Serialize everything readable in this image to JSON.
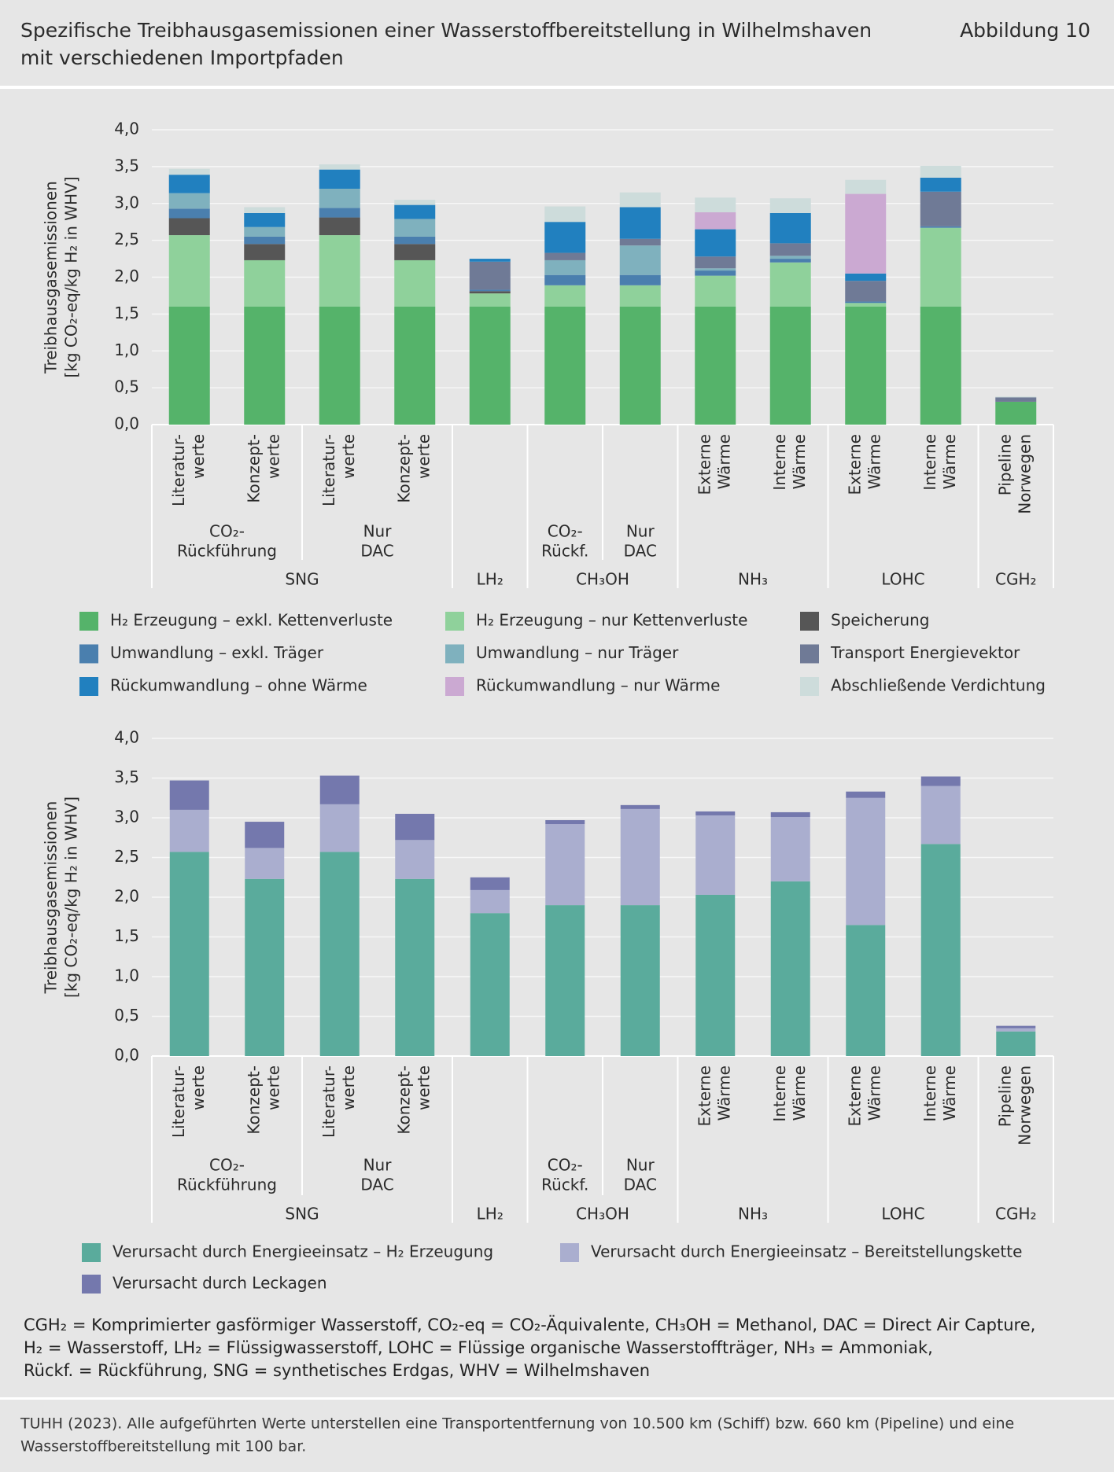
{
  "header": {
    "title": [
      "Spezifische Treibhausgasemissionen einer Wasserstoffbereitstellung in Wilhelmshaven",
      "mit verschiedenen Importpfaden"
    ],
    "figure": "Abbildung 10"
  },
  "chart_data": [
    {
      "type": "stacked_bar",
      "y_label": [
        "Treibhausgasemissionen",
        "[kg CO₂-eq/kg H₂ in WHV]"
      ],
      "ylim": [
        0,
        4
      ],
      "yticks": [
        {
          "value": 0,
          "label": "0,0"
        },
        {
          "value": 0.5,
          "label": "0,5"
        },
        {
          "value": 1,
          "label": "1,0"
        },
        {
          "value": 1.5,
          "label": "1,5"
        },
        {
          "value": 2,
          "label": "2,0"
        },
        {
          "value": 2.5,
          "label": "2,5"
        },
        {
          "value": 3,
          "label": "3,0"
        },
        {
          "value": 3.5,
          "label": "3,5"
        },
        {
          "value": 4,
          "label": "4,0"
        }
      ],
      "grid": true,
      "groups": [
        {
          "name": "SNG",
          "subgroups": [
            {
              "label": [
                "CO₂-",
                "Rückführung"
              ],
              "bars": [
                [
                  "Literatur-",
                  "werte"
                ],
                [
                  "Konzept-",
                  "werte"
                ]
              ]
            },
            {
              "label": [
                "Nur",
                "DAC"
              ],
              "bars": [
                [
                  "Literatur-",
                  "werte"
                ],
                [
                  "Konzept-",
                  "werte"
                ]
              ]
            }
          ]
        },
        {
          "name": "LH₂",
          "subgroups": [
            {
              "bars": [
                null
              ]
            }
          ]
        },
        {
          "name": "CH₃OH",
          "subgroups": [
            {
              "label": [
                "CO₂-",
                "Rückf."
              ],
              "bars": [
                null
              ]
            },
            {
              "label": [
                "Nur",
                "DAC"
              ],
              "bars": [
                null
              ]
            }
          ]
        },
        {
          "name": "NH₃",
          "subgroups": [
            {
              "bars": [
                [
                  "Externe",
                  "Wärme"
                ],
                [
                  "Interne",
                  "Wärme"
                ]
              ]
            }
          ]
        },
        {
          "name": "LOHC",
          "subgroups": [
            {
              "bars": [
                [
                  "Externe",
                  "Wärme"
                ],
                [
                  "Interne",
                  "Wärme"
                ]
              ]
            }
          ]
        },
        {
          "name": "CGH₂",
          "subgroups": [
            {
              "bars": [
                [
                  "Pipeline",
                  "Norwegen"
                ]
              ]
            }
          ]
        }
      ],
      "series": [
        {
          "name": "H₂ Erzeugung – exkl. Kettenverluste",
          "color": "#55b36a",
          "values": [
            1.6,
            1.6,
            1.6,
            1.6,
            1.6,
            1.6,
            1.6,
            1.6,
            1.6,
            1.6,
            1.6,
            0.31
          ]
        },
        {
          "name": "H₂ Erzeugung – nur Kettenverluste",
          "color": "#8fd19b",
          "values": [
            0.97,
            0.63,
            0.97,
            0.63,
            0.18,
            0.29,
            0.29,
            0.42,
            0.6,
            0.05,
            1.07,
            0
          ]
        },
        {
          "name": "Speicherung",
          "color": "#565656",
          "values": [
            0.23,
            0.22,
            0.24,
            0.22,
            0.03,
            0,
            0,
            0,
            0,
            0,
            0,
            0
          ]
        },
        {
          "name": "Umwandlung – exkl. Träger",
          "color": "#4a7fae",
          "values": [
            0.13,
            0.1,
            0.13,
            0.1,
            0.02,
            0.14,
            0.14,
            0.07,
            0.05,
            0.02,
            0.02,
            0
          ]
        },
        {
          "name": "Umwandlung – nur Träger",
          "color": "#7fb1be",
          "values": [
            0.21,
            0.13,
            0.26,
            0.24,
            0,
            0.2,
            0.4,
            0.03,
            0.04,
            0,
            0,
            0
          ]
        },
        {
          "name": "Transport Energievektor",
          "color": "#6f7a96",
          "values": [
            0,
            0,
            0,
            0,
            0.38,
            0.1,
            0.09,
            0.16,
            0.17,
            0.28,
            0.47,
            0.06
          ]
        },
        {
          "name": "Rückumwandlung – ohne Wärme",
          "color": "#2180bf",
          "values": [
            0.25,
            0.19,
            0.26,
            0.19,
            0.04,
            0.42,
            0.43,
            0.37,
            0.41,
            0.1,
            0.19,
            0
          ]
        },
        {
          "name": "Rückumwandlung – nur Wärme",
          "color": "#cba9d2",
          "values": [
            0,
            0,
            0,
            0,
            0,
            0,
            0,
            0.23,
            0,
            1.08,
            0,
            0
          ]
        },
        {
          "name": "Abschließende Verdichtung",
          "color": "#cddcdb",
          "values": [
            0.08,
            0.08,
            0.07,
            0.07,
            0,
            0.21,
            0.2,
            0.2,
            0.2,
            0.19,
            0.16,
            0.01
          ]
        }
      ]
    },
    {
      "type": "stacked_bar",
      "y_label": [
        "Treibhausgasemissionen",
        "[kg CO₂-eq/kg H₂ in WHV]"
      ],
      "ylim": [
        0,
        4
      ],
      "yticks": [
        {
          "value": 0,
          "label": "0,0"
        },
        {
          "value": 0.5,
          "label": "0,5"
        },
        {
          "value": 1,
          "label": "1,0"
        },
        {
          "value": 1.5,
          "label": "1,5"
        },
        {
          "value": 2,
          "label": "2,0"
        },
        {
          "value": 2.5,
          "label": "2,5"
        },
        {
          "value": 3,
          "label": "3,0"
        },
        {
          "value": 3.5,
          "label": "3,5"
        },
        {
          "value": 4,
          "label": "4,0"
        }
      ],
      "grid": true,
      "groups": [
        {
          "name": "SNG",
          "subgroups": [
            {
              "label": [
                "CO₂-",
                "Rückführung"
              ],
              "bars": [
                [
                  "Literatur-",
                  "werte"
                ],
                [
                  "Konzept-",
                  "werte"
                ]
              ]
            },
            {
              "label": [
                "Nur",
                "DAC"
              ],
              "bars": [
                [
                  "Literatur-",
                  "werte"
                ],
                [
                  "Konzept-",
                  "werte"
                ]
              ]
            }
          ]
        },
        {
          "name": "LH₂",
          "subgroups": [
            {
              "bars": [
                null
              ]
            }
          ]
        },
        {
          "name": "CH₃OH",
          "subgroups": [
            {
              "label": [
                "CO₂-",
                "Rückf."
              ],
              "bars": [
                null
              ]
            },
            {
              "label": [
                "Nur",
                "DAC"
              ],
              "bars": [
                null
              ]
            }
          ]
        },
        {
          "name": "NH₃",
          "subgroups": [
            {
              "bars": [
                [
                  "Externe",
                  "Wärme"
                ],
                [
                  "Interne",
                  "Wärme"
                ]
              ]
            }
          ]
        },
        {
          "name": "LOHC",
          "subgroups": [
            {
              "bars": [
                [
                  "Externe",
                  "Wärme"
                ],
                [
                  "Interne",
                  "Wärme"
                ]
              ]
            }
          ]
        },
        {
          "name": "CGH₂",
          "subgroups": [
            {
              "bars": [
                [
                  "Pipeline",
                  "Norwegen"
                ]
              ]
            }
          ]
        }
      ],
      "series": [
        {
          "name": "Verursacht durch Energieeinsatz – H₂ Erzeugung",
          "color": "#5aab9c",
          "values": [
            2.57,
            2.23,
            2.57,
            2.23,
            1.8,
            1.9,
            1.9,
            2.03,
            2.2,
            1.65,
            2.67,
            0.31
          ]
        },
        {
          "name": "Verursacht durch Energieeinsatz – Bereitstellungskette",
          "color": "#aaaecf",
          "values": [
            0.53,
            0.39,
            0.6,
            0.49,
            0.29,
            1.02,
            1.21,
            1.0,
            0.81,
            1.6,
            0.73,
            0.04
          ]
        },
        {
          "name": "Verursacht durch Leckagen",
          "color": "#7478ad",
          "values": [
            0.37,
            0.33,
            0.36,
            0.33,
            0.16,
            0.05,
            0.05,
            0.05,
            0.06,
            0.08,
            0.12,
            0.03
          ]
        }
      ]
    }
  ],
  "notes": [
    "CGH₂ = Komprimierter gasförmiger Wasserstoff, CO₂-eq = CO₂-Äquivalente, CH₃OH = Methanol, DAC = Direct Air Capture,",
    "H₂ = Wasserstoff, LH₂ = Flüssigwasserstoff, LOHC = Flüssige organische Wasserstoffträger, NH₃ = Ammoniak,",
    "Rückf. = Rückführung, SNG = synthetisches Erdgas, WHV = Wilhelmshaven"
  ],
  "source": [
    "TUHH (2023). Alle aufgeführten Werte unterstellen eine Transportentfernung von 10.500 km (Schiff) bzw. 660 km (Pipeline) und eine",
    "Wasserstoffbereitstellung mit 100 bar."
  ]
}
